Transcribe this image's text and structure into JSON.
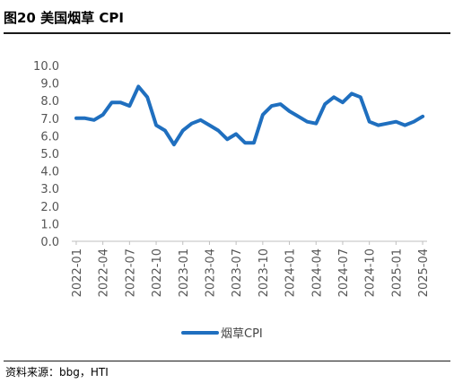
{
  "header": {
    "title": "图20 美国烟草 CPI"
  },
  "footer": {
    "source": "资料来源：bbg，HTI"
  },
  "colors": {
    "series": "#1f6fbf",
    "axis": "#bfbfbf",
    "text": "#555555"
  },
  "chart_data": {
    "type": "line",
    "title": "",
    "xlabel": "",
    "ylabel": "",
    "ylim": [
      0,
      10
    ],
    "yticks": [
      "0.0",
      "1.0",
      "2.0",
      "3.0",
      "4.0",
      "5.0",
      "6.0",
      "7.0",
      "8.0",
      "9.0",
      "10.0"
    ],
    "grid": false,
    "legend_position": "bottom",
    "x": [
      "2022-01",
      "2022-02",
      "2022-03",
      "2022-04",
      "2022-05",
      "2022-06",
      "2022-07",
      "2022-08",
      "2022-09",
      "2022-10",
      "2022-11",
      "2022-12",
      "2023-01",
      "2023-02",
      "2023-03",
      "2023-04",
      "2023-05",
      "2023-06",
      "2023-07",
      "2023-08",
      "2023-09",
      "2023-10",
      "2023-11",
      "2023-12",
      "2024-01",
      "2024-02",
      "2024-03",
      "2024-04",
      "2024-05",
      "2024-06",
      "2024-07",
      "2024-08",
      "2024-09",
      "2024-10",
      "2024-11",
      "2024-12",
      "2025-01",
      "2025-02",
      "2025-03",
      "2025-04"
    ],
    "xtick_labels": [
      "2022-01",
      "2022-04",
      "2022-07",
      "2022-10",
      "2023-01",
      "2023-04",
      "2023-07",
      "2023-10",
      "2024-01",
      "2024-04",
      "2024-07",
      "2024-10",
      "2025-01",
      "2025-04"
    ],
    "series": [
      {
        "name": "烟草CPI",
        "values": [
          7.0,
          7.0,
          6.9,
          7.2,
          7.9,
          7.9,
          7.7,
          8.8,
          8.2,
          6.6,
          6.3,
          5.5,
          6.3,
          6.7,
          6.9,
          6.6,
          6.3,
          5.8,
          6.1,
          5.6,
          5.6,
          7.2,
          7.7,
          7.8,
          7.4,
          7.1,
          6.8,
          6.7,
          7.8,
          8.2,
          7.9,
          8.4,
          8.2,
          6.8,
          6.6,
          6.7,
          6.8,
          6.6,
          6.8,
          7.1
        ]
      }
    ]
  }
}
